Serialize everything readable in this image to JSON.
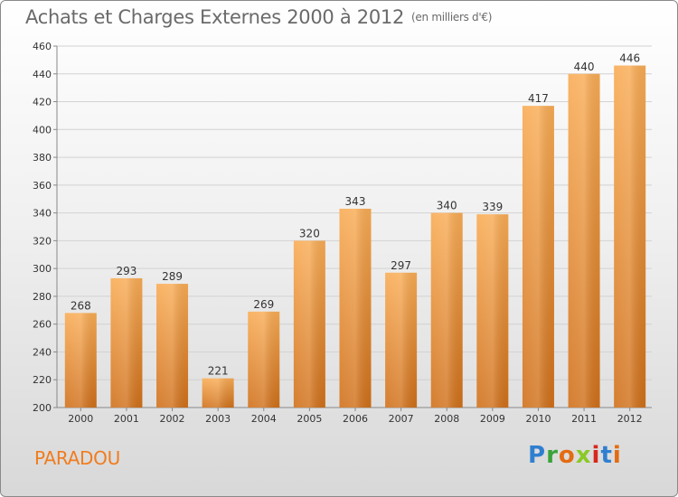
{
  "header": {
    "title": "Achats et Charges Externes 2000 à 2012",
    "unit": "(en milliers d'€)"
  },
  "footer": {
    "commune": "PARADOU",
    "logo": "Proxiti"
  },
  "colors": {
    "bar_light": "#f7a64f",
    "bar_dark": "#d5731a",
    "commune": "#f07c1e"
  },
  "chart_data": {
    "type": "bar",
    "categories": [
      "2000",
      "2001",
      "2002",
      "2003",
      "2004",
      "2005",
      "2006",
      "2007",
      "2008",
      "2009",
      "2010",
      "2011",
      "2012"
    ],
    "values": [
      268,
      293,
      289,
      221,
      269,
      320,
      343,
      297,
      340,
      339,
      417,
      440,
      446
    ],
    "title": "Achats et Charges Externes 2000 à 2012",
    "ylim": [
      200,
      460
    ],
    "yticks": [
      200,
      220,
      240,
      260,
      280,
      300,
      320,
      340,
      360,
      380,
      400,
      420,
      440,
      460
    ],
    "grid": true
  }
}
